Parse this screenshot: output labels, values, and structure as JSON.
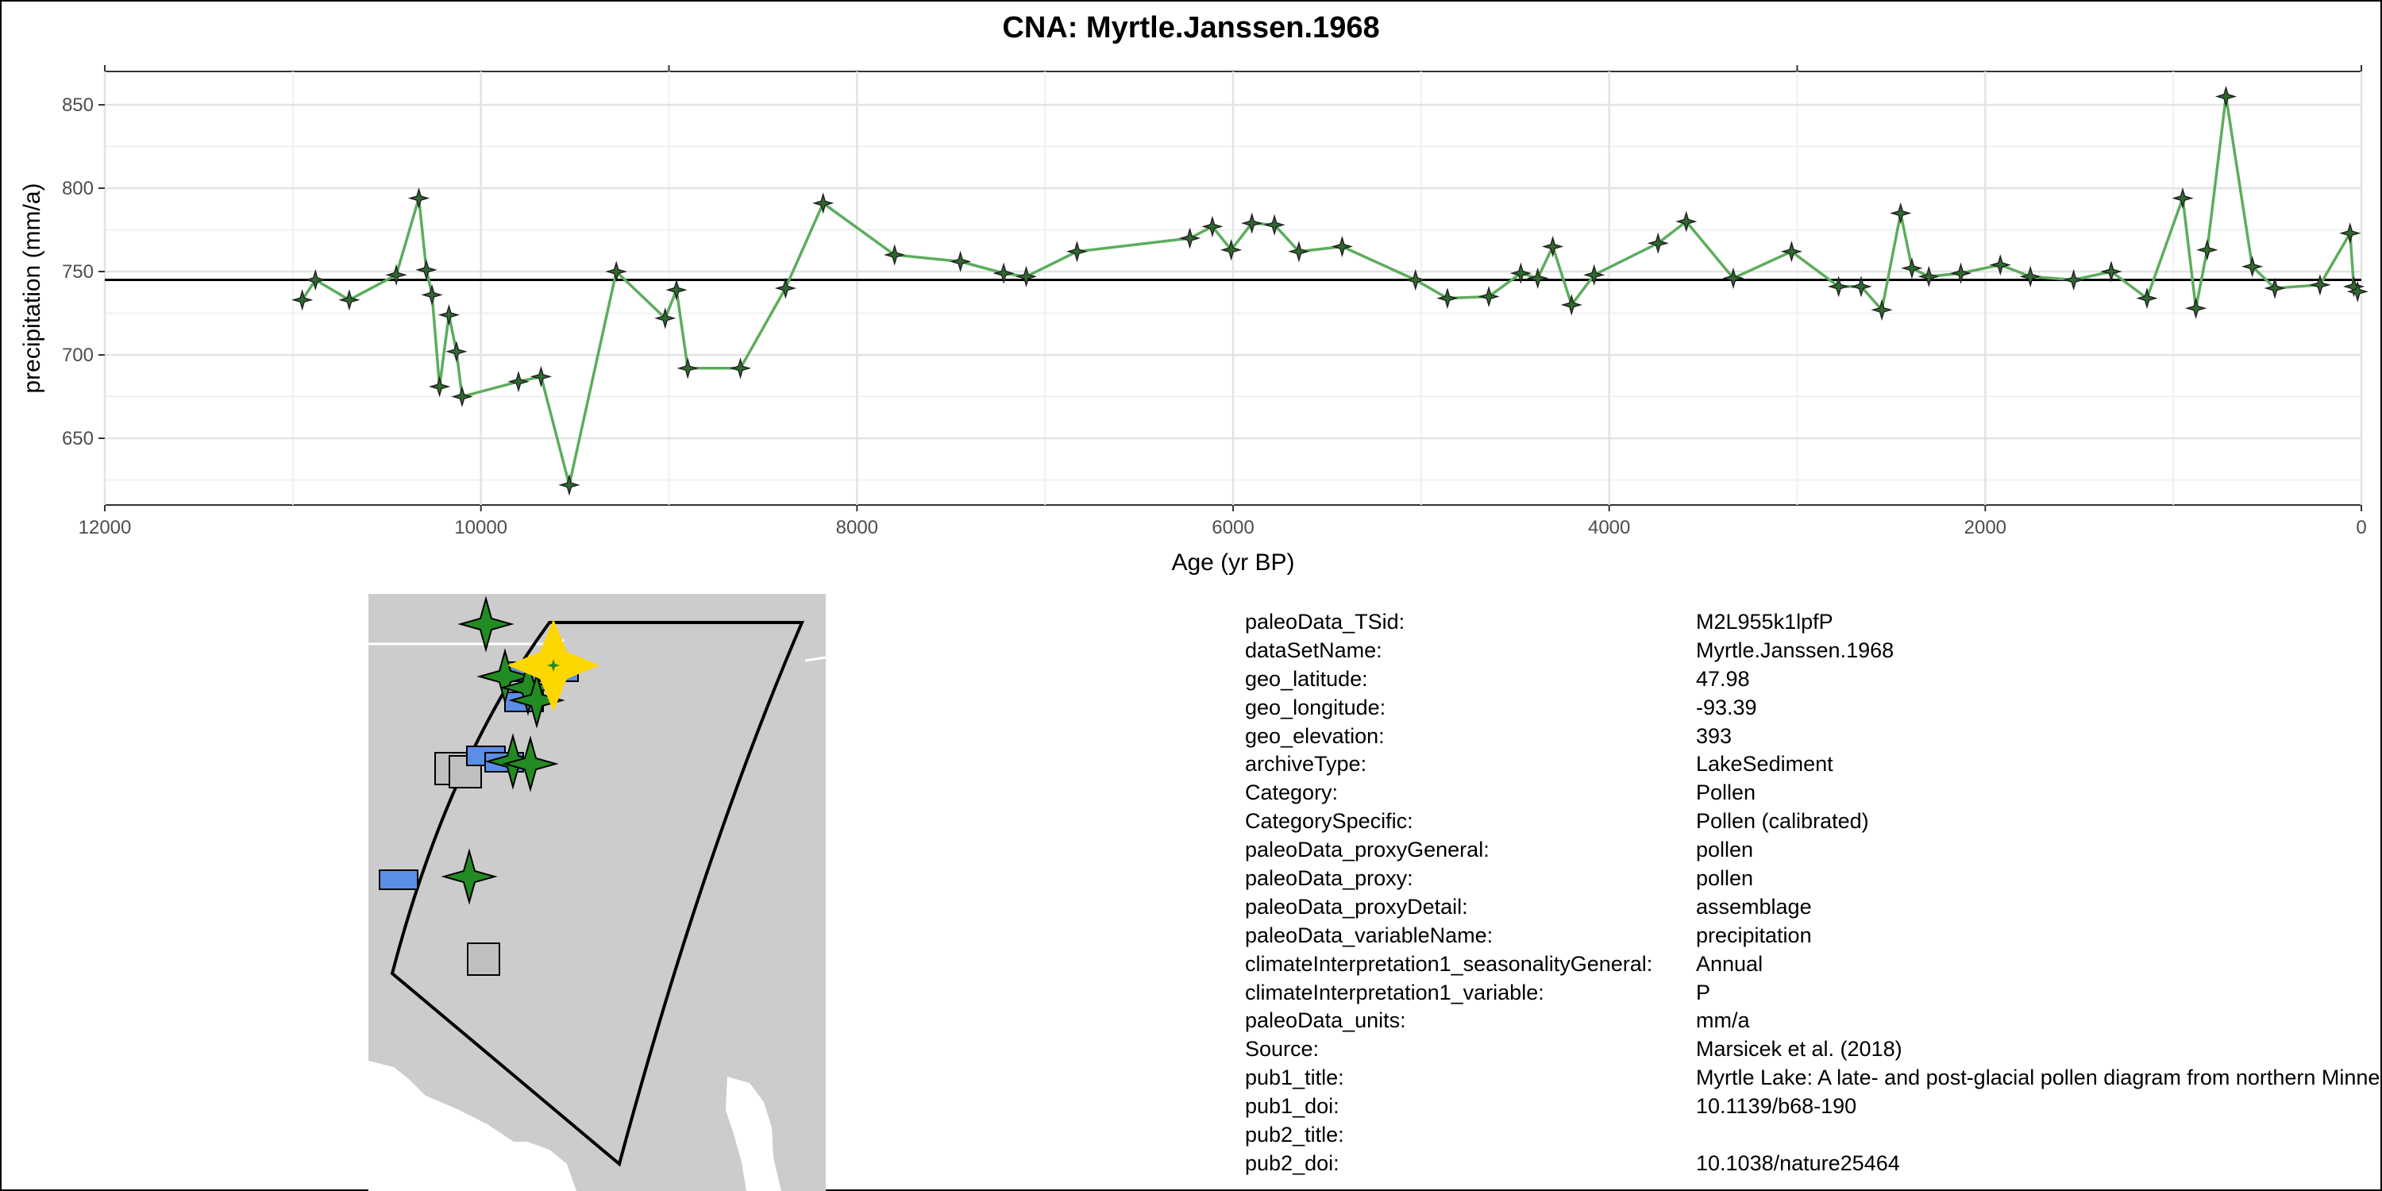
{
  "title": "CNA: Myrtle.Janssen.1968",
  "colors": {
    "line": "#5cad5c",
    "mean_line": "#000000",
    "point": "#2f6b2f",
    "map_land": "#cccccc",
    "star": "#228b22",
    "highlight": "#ffd700",
    "blue_box": "#5b8ee6",
    "gray_box": "#bfbfbf"
  },
  "chart_data": {
    "type": "line",
    "title": "CNA: Myrtle.Janssen.1968",
    "xlabel": "Age (yr BP)",
    "ylabel": "precipitation (mm/a)",
    "xlim": [
      12000,
      0
    ],
    "ylim": [
      610,
      870
    ],
    "x_reversed": true,
    "x_ticks": [
      12000,
      10000,
      8000,
      6000,
      4000,
      2000,
      0
    ],
    "x_tick_labels": [
      "12000",
      "10000",
      "8000",
      "6000",
      "4000",
      "2000",
      "0"
    ],
    "y_ticks": [
      650,
      700,
      750,
      800,
      850
    ],
    "y_tick_labels": [
      "650",
      "700",
      "750",
      "800",
      "850"
    ],
    "grid": true,
    "reference_line": 745,
    "series": [
      {
        "values": [
          [
            10950,
            733
          ],
          [
            10880,
            745
          ],
          [
            10700,
            733
          ],
          [
            10450,
            748
          ],
          [
            10330,
            794
          ],
          [
            10290,
            751
          ],
          [
            10260,
            736
          ],
          [
            10220,
            681
          ],
          [
            10170,
            724
          ],
          [
            10130,
            702
          ],
          [
            10100,
            675
          ],
          [
            9800,
            684
          ],
          [
            9680,
            687
          ],
          [
            9530,
            622
          ],
          [
            9280,
            750
          ],
          [
            9020,
            722
          ],
          [
            8960,
            739
          ],
          [
            8900,
            692
          ],
          [
            8620,
            692
          ],
          [
            8380,
            740
          ],
          [
            8180,
            791
          ],
          [
            7800,
            760
          ],
          [
            7450,
            756
          ],
          [
            7220,
            749
          ],
          [
            7100,
            747
          ],
          [
            6830,
            762
          ],
          [
            6230,
            770
          ],
          [
            6110,
            777
          ],
          [
            6010,
            763
          ],
          [
            5900,
            779
          ],
          [
            5780,
            778
          ],
          [
            5650,
            762
          ],
          [
            5420,
            765
          ],
          [
            5030,
            745
          ],
          [
            4860,
            734
          ],
          [
            4640,
            735
          ],
          [
            4470,
            749
          ],
          [
            4380,
            746
          ],
          [
            4300,
            765
          ],
          [
            4200,
            730
          ],
          [
            4080,
            748
          ],
          [
            3740,
            767
          ],
          [
            3590,
            780
          ],
          [
            3340,
            746
          ],
          [
            3030,
            762
          ],
          [
            2780,
            741
          ],
          [
            2660,
            741
          ],
          [
            2550,
            727
          ],
          [
            2450,
            785
          ],
          [
            2390,
            752
          ],
          [
            2300,
            747
          ],
          [
            2130,
            749
          ],
          [
            1920,
            754
          ],
          [
            1760,
            747
          ],
          [
            1530,
            745
          ],
          [
            1330,
            750
          ],
          [
            1140,
            734
          ],
          [
            950,
            794
          ],
          [
            880,
            728
          ],
          [
            820,
            763
          ],
          [
            720,
            855
          ],
          [
            580,
            753
          ],
          [
            460,
            740
          ],
          [
            220,
            742
          ],
          [
            60,
            773
          ],
          [
            40,
            741
          ],
          [
            20,
            738
          ]
        ]
      }
    ]
  },
  "map": {
    "stars": [
      {
        "x": 148,
        "y": 38
      },
      {
        "x": 172,
        "y": 104
      },
      {
        "x": 201,
        "y": 118
      },
      {
        "x": 212,
        "y": 134
      },
      {
        "x": 182,
        "y": 211
      },
      {
        "x": 204,
        "y": 214
      },
      {
        "x": 127,
        "y": 356
      }
    ],
    "blue_boxes": [
      {
        "x": 196,
        "y": 98
      },
      {
        "x": 240,
        "y": 98
      },
      {
        "x": 196,
        "y": 136
      },
      {
        "x": 148,
        "y": 204
      },
      {
        "x": 171,
        "y": 212
      },
      {
        "x": 38,
        "y": 360
      }
    ],
    "gray_boxes": [
      {
        "x": 104,
        "y": 220
      },
      {
        "x": 122,
        "y": 224
      },
      {
        "x": 145,
        "y": 460
      }
    ],
    "highlight": {
      "x": 233,
      "y": 90
    }
  },
  "metadata": [
    {
      "key": "paleoData_TSid:",
      "value": "M2L955k1lpfP"
    },
    {
      "key": "dataSetName:",
      "value": "Myrtle.Janssen.1968"
    },
    {
      "key": "geo_latitude:",
      "value": "47.98"
    },
    {
      "key": "geo_longitude:",
      "value": "-93.39"
    },
    {
      "key": "geo_elevation:",
      "value": "393"
    },
    {
      "key": "archiveType:",
      "value": "LakeSediment"
    },
    {
      "key": "Category:",
      "value": "Pollen"
    },
    {
      "key": "CategorySpecific:",
      "value": "Pollen (calibrated)"
    },
    {
      "key": "paleoData_proxyGeneral:",
      "value": "pollen"
    },
    {
      "key": "paleoData_proxy:",
      "value": "pollen"
    },
    {
      "key": "paleoData_proxyDetail:",
      "value": "assemblage"
    },
    {
      "key": "paleoData_variableName:",
      "value": "precipitation"
    },
    {
      "key": "climateInterpretation1_seasonalityGeneral:",
      "value": "Annual"
    },
    {
      "key": "climateInterpretation1_variable:",
      "value": "P"
    },
    {
      "key": "paleoData_units:",
      "value": "mm/a"
    },
    {
      "key": "Source:",
      "value": "Marsicek et al. (2018)"
    },
    {
      "key": "pub1_title:",
      "value": "Myrtle Lake: A late- and post-glacial pollen diagram from northern Minnesota"
    },
    {
      "key": "pub1_doi:",
      "value": "10.1139/b68-190"
    },
    {
      "key": "pub2_title:",
      "value": ""
    },
    {
      "key": "pub2_doi:",
      "value": "10.1038/nature25464"
    }
  ]
}
